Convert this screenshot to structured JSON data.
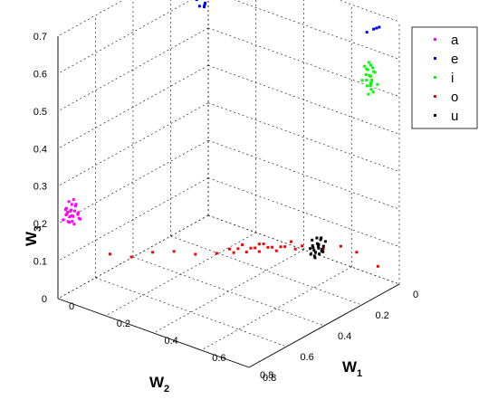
{
  "chart_data": {
    "type": "scatter3d",
    "grid": true,
    "legend_position": "top-right",
    "axes": {
      "w1": {
        "label": "W",
        "sub": "1",
        "range": [
          0,
          0.8
        ],
        "ticks": [
          "0",
          "0.2",
          "0.4",
          "0.6",
          "0.8"
        ]
      },
      "w2": {
        "label": "W",
        "sub": "2",
        "range": [
          0,
          0.8
        ],
        "ticks": [
          "0",
          "0.2",
          "0.4",
          "0.6",
          "0.8"
        ]
      },
      "w3": {
        "label": "W",
        "sub": "3",
        "range": [
          0,
          0.7
        ],
        "ticks": [
          "0",
          "0.1",
          "0.2",
          "0.3",
          "0.4",
          "0.5",
          "0.6",
          "0.7"
        ]
      }
    },
    "series": [
      {
        "name": "a",
        "color": "#ff00ff",
        "points": [
          [
            0.05,
            0.79,
            0.23
          ],
          [
            0.04,
            0.78,
            0.24
          ],
          [
            0.06,
            0.8,
            0.22
          ],
          [
            0.05,
            0.77,
            0.25
          ],
          [
            0.03,
            0.79,
            0.23
          ],
          [
            0.07,
            0.78,
            0.24
          ],
          [
            0.05,
            0.81,
            0.22
          ],
          [
            0.04,
            0.8,
            0.24
          ],
          [
            0.06,
            0.77,
            0.23
          ],
          [
            0.05,
            0.79,
            0.26
          ],
          [
            0.03,
            0.81,
            0.22
          ],
          [
            0.07,
            0.8,
            0.25
          ],
          [
            0.06,
            0.79,
            0.21
          ],
          [
            0.04,
            0.77,
            0.22
          ],
          [
            0.05,
            0.78,
            0.27
          ],
          [
            0.02,
            0.78,
            0.24
          ],
          [
            0.08,
            0.79,
            0.23
          ],
          [
            0.05,
            0.82,
            0.24
          ],
          [
            0.06,
            0.81,
            0.25
          ],
          [
            0.04,
            0.79,
            0.21
          ],
          [
            0.03,
            0.78,
            0.26
          ],
          [
            0.07,
            0.77,
            0.22
          ],
          [
            0.05,
            0.8,
            0.23
          ],
          [
            0.06,
            0.78,
            0.26
          ],
          [
            0.04,
            0.81,
            0.25
          ]
        ]
      },
      {
        "name": "e",
        "color": "#0000ff",
        "points": [
          [
            0.04,
            0.08,
            0.65
          ],
          [
            0.05,
            0.06,
            0.64
          ],
          [
            0.03,
            0.07,
            0.66
          ],
          [
            0.06,
            0.08,
            0.63
          ],
          [
            0.05,
            0.05,
            0.65
          ],
          [
            0.04,
            0.09,
            0.62
          ],
          [
            0.06,
            0.06,
            0.66
          ],
          [
            0.03,
            0.05,
            0.64
          ],
          [
            0.05,
            0.09,
            0.67
          ],
          [
            0.07,
            0.07,
            0.64
          ],
          [
            0.04,
            0.06,
            0.61
          ],
          [
            0.02,
            0.07,
            0.65
          ],
          [
            0.06,
            0.1,
            0.64
          ],
          [
            0.05,
            0.07,
            0.68
          ],
          [
            0.03,
            0.09,
            0.63
          ],
          [
            0.07,
            0.05,
            0.65
          ],
          [
            0.04,
            0.04,
            0.66
          ],
          [
            0.05,
            0.08,
            0.6
          ],
          [
            0.06,
            0.09,
            0.62
          ],
          [
            0.02,
            0.06,
            0.63
          ],
          [
            0.08,
            0.08,
            0.66
          ],
          [
            0.04,
            0.07,
            0.59
          ],
          [
            0.03,
            0.1,
            0.61
          ],
          [
            0.06,
            0.04,
            0.64
          ],
          [
            0.05,
            0.11,
            0.6
          ],
          [
            0.03,
            0.06,
            0.58
          ]
        ]
      },
      {
        "name": "e",
        "color": "#0000ff",
        "points": [
          [
            0.72,
            0.02,
            0.67
          ],
          [
            0.7,
            0.01,
            0.66
          ],
          [
            0.74,
            0.03,
            0.68
          ],
          [
            0.68,
            0.02,
            0.65
          ]
        ]
      },
      {
        "name": "i",
        "color": "#00ff00",
        "points": [
          [
            0.72,
            0.05,
            0.55
          ],
          [
            0.71,
            0.06,
            0.54
          ],
          [
            0.73,
            0.04,
            0.56
          ],
          [
            0.72,
            0.07,
            0.53
          ],
          [
            0.7,
            0.05,
            0.55
          ],
          [
            0.74,
            0.06,
            0.57
          ],
          [
            0.71,
            0.04,
            0.52
          ],
          [
            0.73,
            0.07,
            0.56
          ],
          [
            0.72,
            0.05,
            0.58
          ],
          [
            0.7,
            0.07,
            0.54
          ],
          [
            0.74,
            0.04,
            0.53
          ],
          [
            0.71,
            0.06,
            0.57
          ],
          [
            0.73,
            0.05,
            0.51
          ],
          [
            0.72,
            0.06,
            0.59
          ],
          [
            0.7,
            0.04,
            0.56
          ],
          [
            0.74,
            0.07,
            0.55
          ],
          [
            0.71,
            0.05,
            0.5
          ],
          [
            0.73,
            0.06,
            0.52
          ],
          [
            0.72,
            0.04,
            0.57
          ],
          [
            0.71,
            0.07,
            0.58
          ],
          [
            0.72,
            0.05,
            0.53
          ],
          [
            0.73,
            0.06,
            0.54
          ]
        ]
      },
      {
        "name": "o",
        "color": "#ff0000",
        "points": [
          [
            0.55,
            0.2,
            0.1
          ],
          [
            0.5,
            0.25,
            0.1
          ],
          [
            0.45,
            0.3,
            0.09
          ],
          [
            0.4,
            0.35,
            0.1
          ],
          [
            0.35,
            0.4,
            0.09
          ],
          [
            0.52,
            0.22,
            0.11
          ],
          [
            0.48,
            0.27,
            0.1
          ],
          [
            0.42,
            0.33,
            0.09
          ],
          [
            0.38,
            0.37,
            0.1
          ],
          [
            0.46,
            0.29,
            0.11
          ],
          [
            0.44,
            0.31,
            0.1
          ],
          [
            0.49,
            0.26,
            0.09
          ],
          [
            0.53,
            0.21,
            0.09
          ],
          [
            0.41,
            0.34,
            0.11
          ],
          [
            0.47,
            0.28,
            0.1
          ],
          [
            0.43,
            0.32,
            0.1
          ],
          [
            0.39,
            0.36,
            0.09
          ],
          [
            0.51,
            0.24,
            0.1
          ],
          [
            0.45,
            0.3,
            0.11
          ],
          [
            0.3,
            0.45,
            0.09
          ],
          [
            0.25,
            0.5,
            0.1
          ],
          [
            0.2,
            0.55,
            0.1
          ],
          [
            0.15,
            0.6,
            0.09
          ],
          [
            0.1,
            0.65,
            0.1
          ],
          [
            0.6,
            0.15,
            0.09
          ],
          [
            0.65,
            0.12,
            0.1
          ],
          [
            0.7,
            0.1,
            0.09
          ],
          [
            0.75,
            0.05,
            0.05
          ]
        ]
      },
      {
        "name": "u",
        "color": "#000000",
        "points": [
          [
            0.62,
            0.2,
            0.11
          ],
          [
            0.61,
            0.22,
            0.12
          ],
          [
            0.63,
            0.19,
            0.1
          ],
          [
            0.6,
            0.21,
            0.13
          ],
          [
            0.64,
            0.21,
            0.11
          ],
          [
            0.62,
            0.23,
            0.12
          ],
          [
            0.61,
            0.19,
            0.11
          ],
          [
            0.63,
            0.22,
            0.13
          ],
          [
            0.6,
            0.2,
            0.1
          ],
          [
            0.64,
            0.2,
            0.12
          ],
          [
            0.62,
            0.21,
            0.14
          ],
          [
            0.61,
            0.23,
            0.1
          ],
          [
            0.63,
            0.2,
            0.14
          ],
          [
            0.62,
            0.22,
            0.09
          ],
          [
            0.65,
            0.22,
            0.12
          ],
          [
            0.6,
            0.22,
            0.11
          ],
          [
            0.62,
            0.19,
            0.13
          ],
          [
            0.63,
            0.23,
            0.11
          ],
          [
            0.61,
            0.21,
            0.09
          ],
          [
            0.64,
            0.19,
            0.13
          ],
          [
            0.62,
            0.2,
            0.12
          ],
          [
            0.63,
            0.21,
            0.1
          ]
        ]
      }
    ],
    "legend": [
      {
        "label": "a",
        "color": "#ff00ff"
      },
      {
        "label": "e",
        "color": "#0000ff"
      },
      {
        "label": "i",
        "color": "#00ff00"
      },
      {
        "label": "o",
        "color": "#ff0000"
      },
      {
        "label": "u",
        "color": "#000000"
      }
    ]
  }
}
